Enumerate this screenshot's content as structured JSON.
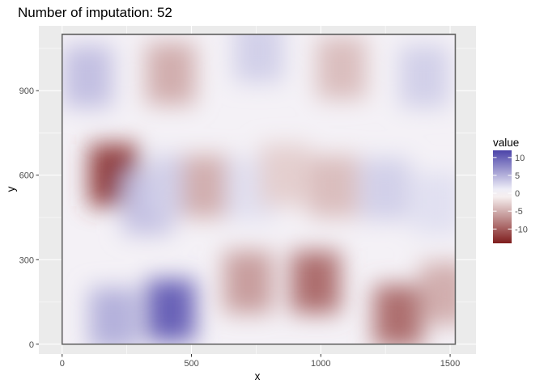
{
  "chart_data": {
    "type": "heatmap",
    "title": "Number of imputation: 52",
    "xlabel": "x",
    "ylabel": "y",
    "xlim": [
      -90,
      1600
    ],
    "ylim": [
      -35,
      1130
    ],
    "x_ticks": [
      0,
      500,
      1000,
      1500
    ],
    "y_ticks": [
      0,
      300,
      600,
      900
    ],
    "field_extent": {
      "x": [
        0,
        1520
      ],
      "y": [
        0,
        1100
      ]
    },
    "grid": true,
    "legend": {
      "title": "value",
      "position": "right",
      "range": [
        -14,
        12
      ],
      "ticks": [
        10,
        5,
        0,
        -5,
        -10
      ],
      "colors": {
        "low": "#7f1d1d",
        "mid": "#ffffff",
        "high": "#4b43a8"
      }
    },
    "summary_cells": [
      {
        "x": 100,
        "y": 950,
        "value": 4
      },
      {
        "x": 420,
        "y": 960,
        "value": -5
      },
      {
        "x": 760,
        "y": 1040,
        "value": 3
      },
      {
        "x": 1080,
        "y": 980,
        "value": -4
      },
      {
        "x": 1400,
        "y": 950,
        "value": 3
      },
      {
        "x": 200,
        "y": 600,
        "value": -12
      },
      {
        "x": 330,
        "y": 500,
        "value": 4
      },
      {
        "x": 430,
        "y": 560,
        "value": 3
      },
      {
        "x": 560,
        "y": 560,
        "value": -5
      },
      {
        "x": 730,
        "y": 550,
        "value": 2
      },
      {
        "x": 860,
        "y": 600,
        "value": -3
      },
      {
        "x": 1050,
        "y": 560,
        "value": -4
      },
      {
        "x": 1250,
        "y": 550,
        "value": 3
      },
      {
        "x": 1450,
        "y": 500,
        "value": 2
      },
      {
        "x": 420,
        "y": 120,
        "value": 10
      },
      {
        "x": 200,
        "y": 90,
        "value": 5
      },
      {
        "x": 720,
        "y": 220,
        "value": -6
      },
      {
        "x": 980,
        "y": 220,
        "value": -9
      },
      {
        "x": 1300,
        "y": 100,
        "value": -9
      },
      {
        "x": 1480,
        "y": 180,
        "value": -5
      }
    ]
  }
}
